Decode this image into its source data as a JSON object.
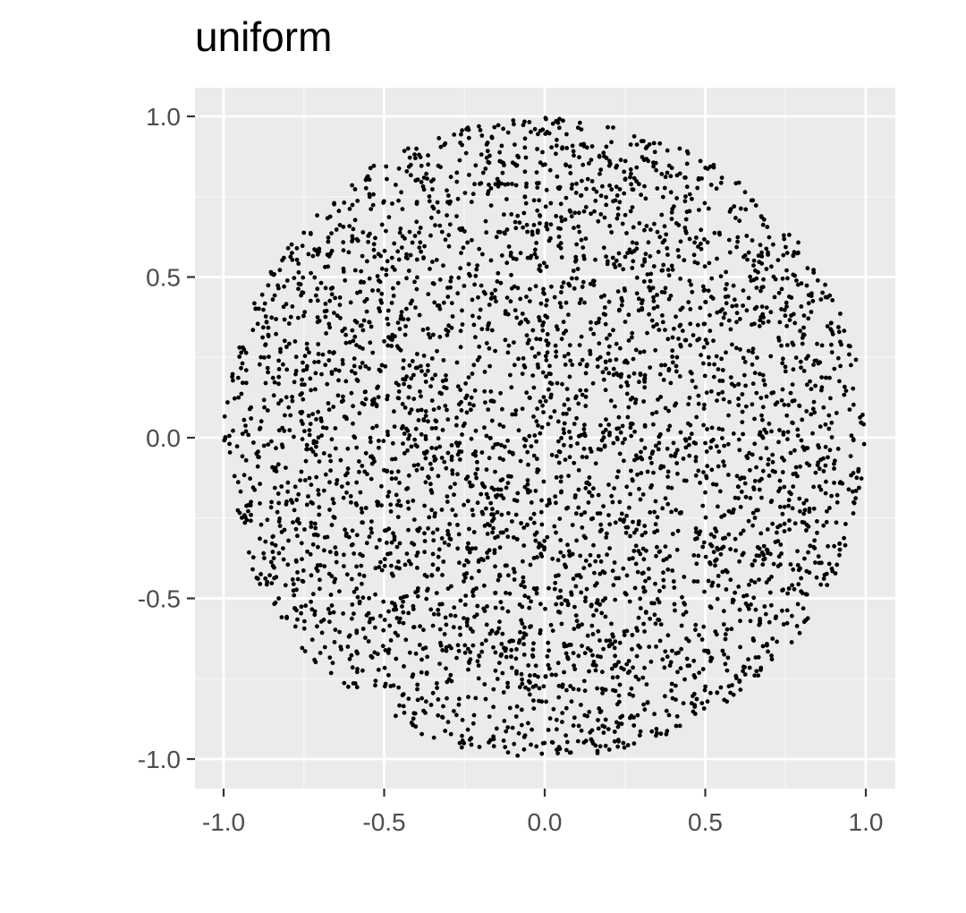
{
  "chart_data": {
    "type": "scatter",
    "title": "uniform",
    "xlabel": "",
    "ylabel": "",
    "xlim": [
      -1.0,
      1.0
    ],
    "ylim": [
      -1.0,
      1.0
    ],
    "x_ticks": [
      -1.0,
      -0.5,
      0.0,
      0.5,
      1.0
    ],
    "y_ticks": [
      -1.0,
      -0.5,
      0.0,
      0.5,
      1.0
    ],
    "x_tick_labels": [
      "-1.0",
      "-0.5",
      "0.0",
      "0.5",
      "1.0"
    ],
    "y_tick_labels": [
      "-1.0",
      "-0.5",
      "0.0",
      "0.5",
      "1.0"
    ],
    "grid": true,
    "legend": "none",
    "n_points": 4000,
    "distribution": "points sampled uniformly at random inside the unit disk (x^2 + y^2 <= 1)",
    "colors": {
      "panel_background": "#EBEBEB",
      "grid_major": "#FFFFFF",
      "grid_minor": "#F5F5F5",
      "point": "#000000",
      "tick_text": "#4D4D4D",
      "tick_mark": "#333333"
    }
  }
}
